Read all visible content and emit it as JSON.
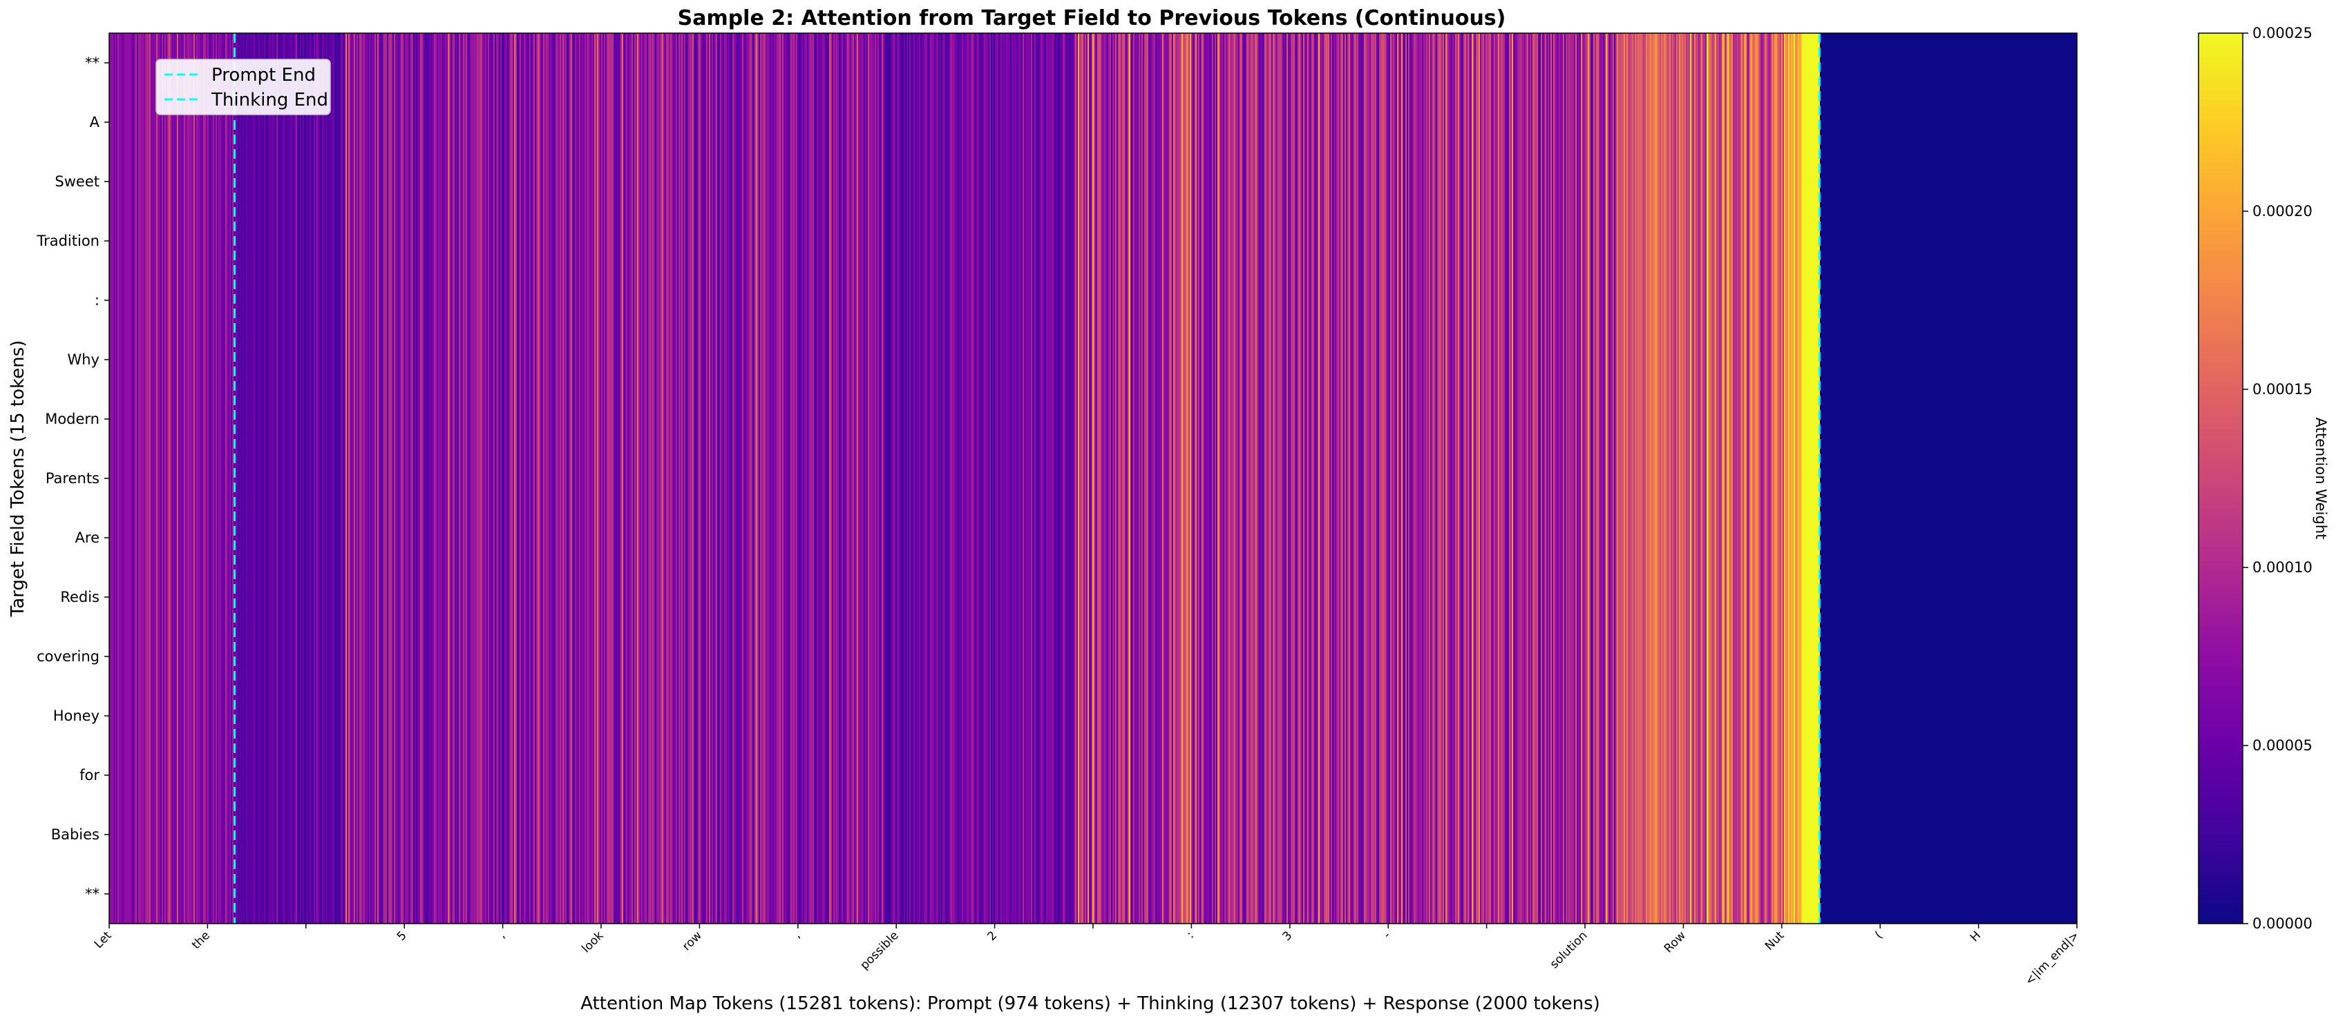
{
  "chart_data": {
    "type": "heatmap",
    "title": "Sample 2: Attention from Target Field to Previous Tokens (Continuous)",
    "xlabel": "Attention Map Tokens (15281 tokens): Prompt (974 tokens) + Thinking (12307 tokens) + Response (2000 tokens)",
    "ylabel": "Target Field Tokens (15 tokens)",
    "total_tokens": 15281,
    "segments": [
      {
        "name": "Prompt",
        "tokens": 974
      },
      {
        "name": "Thinking",
        "tokens": 12307
      },
      {
        "name": "Response",
        "tokens": 2000
      }
    ],
    "y_tokens": [
      "**",
      "A",
      "Sweet",
      "Tradition",
      ":",
      "Why",
      "Modern",
      "Parents",
      "Are",
      "Redis",
      "covering",
      "Honey",
      "for",
      "Babies",
      "**"
    ],
    "x_ticks": [
      {
        "pos": 0,
        "label": "Let"
      },
      {
        "pos": 764,
        "label": "the"
      },
      {
        "pos": 1528,
        "label": ""
      },
      {
        "pos": 2292,
        "label": "5"
      },
      {
        "pos": 3056,
        "label": ","
      },
      {
        "pos": 3820,
        "label": "look"
      },
      {
        "pos": 4584,
        "label": "row"
      },
      {
        "pos": 5348,
        "label": ","
      },
      {
        "pos": 6112,
        "label": "possible"
      },
      {
        "pos": 6876,
        "label": "2"
      },
      {
        "pos": 7640,
        "label": ""
      },
      {
        "pos": 8404,
        "label": ":"
      },
      {
        "pos": 9168,
        "label": "3"
      },
      {
        "pos": 9932,
        "label": "-"
      },
      {
        "pos": 10696,
        "label": ""
      },
      {
        "pos": 11460,
        "label": "solution"
      },
      {
        "pos": 12224,
        "label": "Row"
      },
      {
        "pos": 12988,
        "label": "Nut"
      },
      {
        "pos": 13752,
        "label": "("
      },
      {
        "pos": 14516,
        "label": "H"
      },
      {
        "pos": 15280,
        "label": "<|im_end|>"
      }
    ],
    "vlines": [
      {
        "name": "Prompt End",
        "pos": 974,
        "color": "#00ffff"
      },
      {
        "name": "Thinking End",
        "pos": 13281,
        "color": "#00ffff"
      }
    ],
    "legend": {
      "placement": "top-left",
      "entries": [
        "Prompt End",
        "Thinking End"
      ]
    },
    "colorbar": {
      "label": "Attention Weight",
      "min": 0.0,
      "max": 0.00025,
      "ticks": [
        "0.00000",
        "0.00005",
        "0.00010",
        "0.00015",
        "0.00020",
        "0.00025"
      ],
      "colormap": "plasma"
    },
    "attention_profile": [
      {
        "start": 0,
        "end": 974,
        "mean": 7e-05,
        "spread": 3e-05
      },
      {
        "start": 974,
        "end": 1800,
        "mean": 4e-05,
        "spread": 2e-05
      },
      {
        "start": 1800,
        "end": 6000,
        "mean": 7e-05,
        "spread": 4e-05
      },
      {
        "start": 6000,
        "end": 7500,
        "mean": 5e-05,
        "spread": 3e-05
      },
      {
        "start": 7500,
        "end": 11700,
        "mean": 9e-05,
        "spread": 5e-05
      },
      {
        "start": 11700,
        "end": 12300,
        "mean": 0.00014,
        "spread": 4e-05
      },
      {
        "start": 12300,
        "end": 13000,
        "mean": 0.00014,
        "spread": 6e-05
      },
      {
        "start": 13000,
        "end": 13150,
        "mean": 0.00021,
        "spread": 4e-05
      },
      {
        "start": 13150,
        "end": 13281,
        "mean": 0.00025,
        "spread": 0.0
      },
      {
        "start": 13281,
        "end": 15281,
        "mean": 0.0,
        "spread": 0.0
      }
    ]
  }
}
